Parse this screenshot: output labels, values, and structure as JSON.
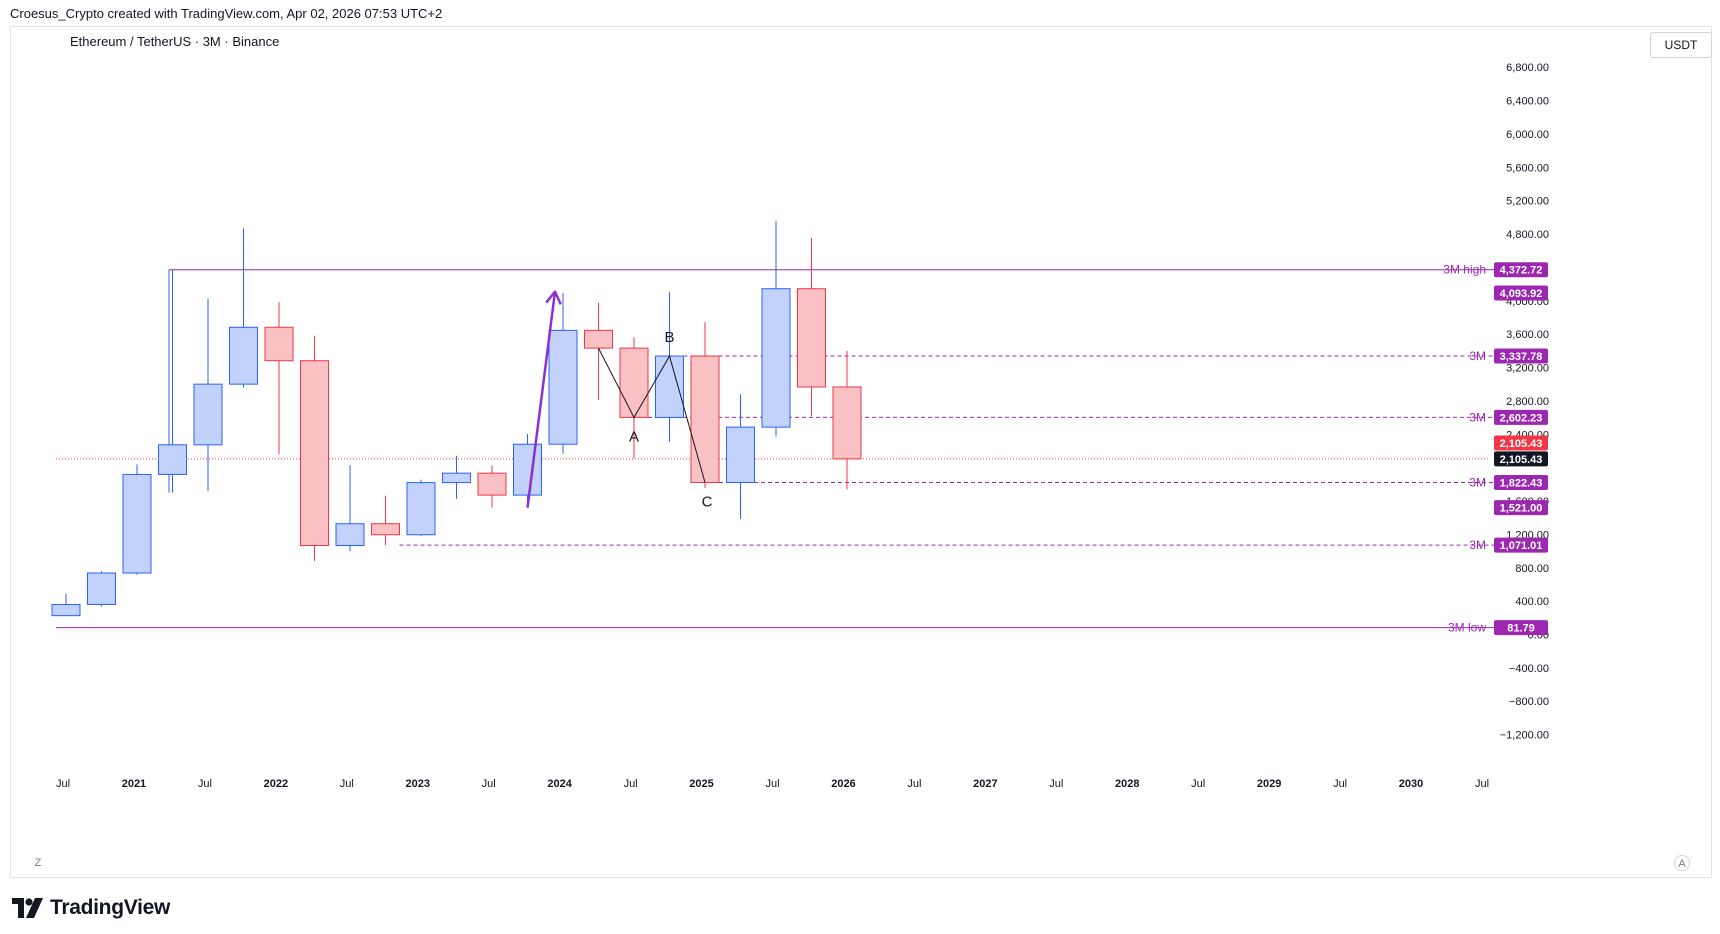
{
  "header": {
    "attribution": "Croesus_Crypto created with TradingView.com, Apr 02, 2026 07:53 UTC+2"
  },
  "symbol": {
    "title": "Ethereum / TetherUS · 3M · Binance"
  },
  "currency": {
    "label": "USDT"
  },
  "brand": {
    "name": "TradingView"
  },
  "controls": {
    "z_label": "Z",
    "a_label": "A"
  },
  "colors": {
    "up_fill": "#c3d2fa",
    "up_border": "#2962ff",
    "down_fill": "#fac1c4",
    "down_border": "#f23645",
    "level": "#9c27b0",
    "current_price": "#f23645",
    "arrow": "#8e2fd6"
  },
  "chart_data": {
    "type": "candlestick",
    "title": "Ethereum / TetherUS · 3M · Binance",
    "interval": "3M",
    "ylim": [
      -1450,
      7200
    ],
    "y_ticks": [
      "6,800.00",
      "6,400.00",
      "6,000.00",
      "5,600.00",
      "5,200.00",
      "4,800.00",
      "4,000.00",
      "3,600.00",
      "3,200.00",
      "2,800.00",
      "2,400.00",
      "1,600.00",
      "1,200.00",
      "800.00",
      "400.00",
      "0.00",
      "−400.00",
      "−800.00",
      "−1,200.00"
    ],
    "x_ticks": [
      "Jul",
      "2021",
      "Jul",
      "2022",
      "Jul",
      "2023",
      "Jul",
      "2024",
      "Jul",
      "2025",
      "Jul",
      "2026",
      "Jul",
      "2027",
      "Jul",
      "2028",
      "Jul",
      "2029",
      "Jul",
      "2030",
      "Jul"
    ],
    "candles": [
      {
        "t": "2020-Q3",
        "o": 226,
        "h": 488,
        "l": 223,
        "c": 360
      },
      {
        "t": "2020-Q4",
        "o": 360,
        "h": 760,
        "l": 335,
        "c": 737
      },
      {
        "t": "2021-Q1",
        "o": 737,
        "h": 2040,
        "l": 715,
        "c": 1919
      },
      {
        "t": "2021-Q2",
        "o": 1919,
        "h": 4372.72,
        "l": 1700,
        "c": 2274
      },
      {
        "t": "2021-Q3",
        "o": 2274,
        "h": 4027,
        "l": 1720,
        "c": 3001
      },
      {
        "t": "2021-Q4",
        "o": 3001,
        "h": 4868,
        "l": 2960,
        "c": 3683
      },
      {
        "t": "2022-Q1",
        "o": 3683,
        "h": 3985,
        "l": 2159,
        "c": 3282
      },
      {
        "t": "2022-Q2",
        "o": 3282,
        "h": 3582,
        "l": 881,
        "c": 1067
      },
      {
        "t": "2022-Q3",
        "o": 1067,
        "h": 2030,
        "l": 1000,
        "c": 1328
      },
      {
        "t": "2022-Q4",
        "o": 1328,
        "h": 1665,
        "l": 1071.01,
        "c": 1196
      },
      {
        "t": "2023-Q1",
        "o": 1196,
        "h": 1857,
        "l": 1180,
        "c": 1821
      },
      {
        "t": "2023-Q2",
        "o": 1821,
        "h": 2142,
        "l": 1626,
        "c": 1934
      },
      {
        "t": "2023-Q3",
        "o": 1934,
        "h": 2029,
        "l": 1521,
        "c": 1671
      },
      {
        "t": "2023-Q4",
        "o": 1671,
        "h": 2403,
        "l": 1521,
        "c": 2281
      },
      {
        "t": "2024-Q1",
        "o": 2281,
        "h": 4093.92,
        "l": 2165,
        "c": 3646
      },
      {
        "t": "2024-Q2",
        "o": 3646,
        "h": 3978,
        "l": 2812,
        "c": 3433
      },
      {
        "t": "2024-Q3",
        "o": 3433,
        "h": 3563,
        "l": 2111,
        "c": 2602.23
      },
      {
        "t": "2024-Q4",
        "o": 2602.23,
        "h": 4107,
        "l": 2310,
        "c": 3337.78
      },
      {
        "t": "2025-Q1",
        "o": 3337.78,
        "h": 3745,
        "l": 1755,
        "c": 1822.43
      },
      {
        "t": "2025-Q2",
        "o": 1822.43,
        "h": 2880,
        "l": 1385,
        "c": 2486
      },
      {
        "t": "2025-Q3",
        "o": 2486,
        "h": 4956,
        "l": 2373,
        "c": 4145
      },
      {
        "t": "2025-Q4",
        "o": 4145,
        "h": 4755,
        "l": 2620,
        "c": 2967
      },
      {
        "t": "2026-Q1",
        "o": 2967,
        "h": 3400,
        "l": 1740,
        "c": 2105.43
      }
    ],
    "levels": [
      {
        "label": "3M high",
        "value": "4,372.72",
        "v": 4372.72,
        "style": "solid"
      },
      {
        "label": "3M",
        "value": "3,337.78",
        "v": 3337.78,
        "style": "dashed"
      },
      {
        "label": "3M",
        "value": "2,602.23",
        "v": 2602.23,
        "style": "dashed"
      },
      {
        "label": "3M",
        "value": "1,822.43",
        "v": 1822.43,
        "style": "dashed"
      },
      {
        "label": "3M",
        "value": "1,071.01",
        "v": 1071.01,
        "style": "dashed"
      },
      {
        "label": "3M low",
        "value": "81.79",
        "v": 81.79,
        "style": "solid"
      }
    ],
    "extra_badges": [
      {
        "value": "4,093.92",
        "v": 4093.92
      },
      {
        "value": "1,521.00",
        "v": 1521
      }
    ],
    "current_price": {
      "value": "2,105.43",
      "v": 2105.43
    },
    "wave_labels": [
      {
        "label": "A",
        "t": "2024-Q3",
        "v": 2602.23
      },
      {
        "label": "B",
        "t": "2024-Q4",
        "v": 3337.78
      },
      {
        "label": "C",
        "t": "2025-Q1",
        "v": 1822.43
      }
    ],
    "annotations": [
      {
        "type": "arrow",
        "from": {
          "t": "2023-Q4",
          "v": 1520
        },
        "to": {
          "t": "2024-Q1",
          "v": 4110
        }
      }
    ]
  }
}
